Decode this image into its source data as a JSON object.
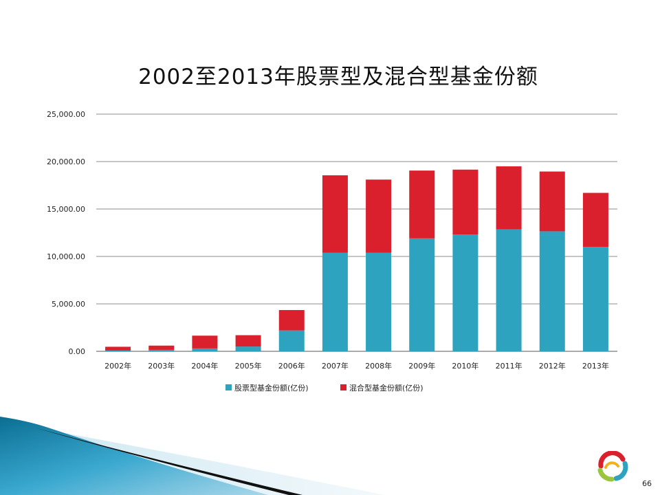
{
  "slide": {
    "page_number": "66"
  },
  "colors": {
    "series_stock": "#2ea3bf",
    "series_mixed": "#d9202c",
    "gridline": "#8c8c8c",
    "decoration_blue": "#1e8fb1"
  },
  "logo": {
    "icon": "ring-logo-icon"
  },
  "chart_data": {
    "type": "bar",
    "stacked": true,
    "title": "2002至2013年股票型及混合型基金份额",
    "categories": [
      "2002年",
      "2003年",
      "2004年",
      "2005年",
      "2006年",
      "2007年",
      "2008年",
      "2009年",
      "2010年",
      "2011年",
      "2012年",
      "2013年"
    ],
    "series": [
      {
        "name": "股票型基金份额(亿份)",
        "color": "#2ea3bf",
        "values": [
          80,
          150,
          300,
          500,
          2200,
          10400,
          10400,
          11900,
          12300,
          12850,
          12650,
          11000
        ]
      },
      {
        "name": "混合型基金份额(亿份)",
        "color": "#d9202c",
        "values": [
          400,
          450,
          1350,
          1200,
          2150,
          8150,
          7700,
          7150,
          6850,
          6650,
          6300,
          5700
        ]
      }
    ],
    "ylim": [
      0,
      25000
    ],
    "yticks": [
      0,
      5000,
      10000,
      15000,
      20000,
      25000
    ],
    "ytick_labels": [
      "0.00",
      "5,000.00",
      "10,000.00",
      "15,000.00",
      "20,000.00",
      "25,000.00"
    ],
    "grid": true,
    "legend_position": "bottom"
  }
}
